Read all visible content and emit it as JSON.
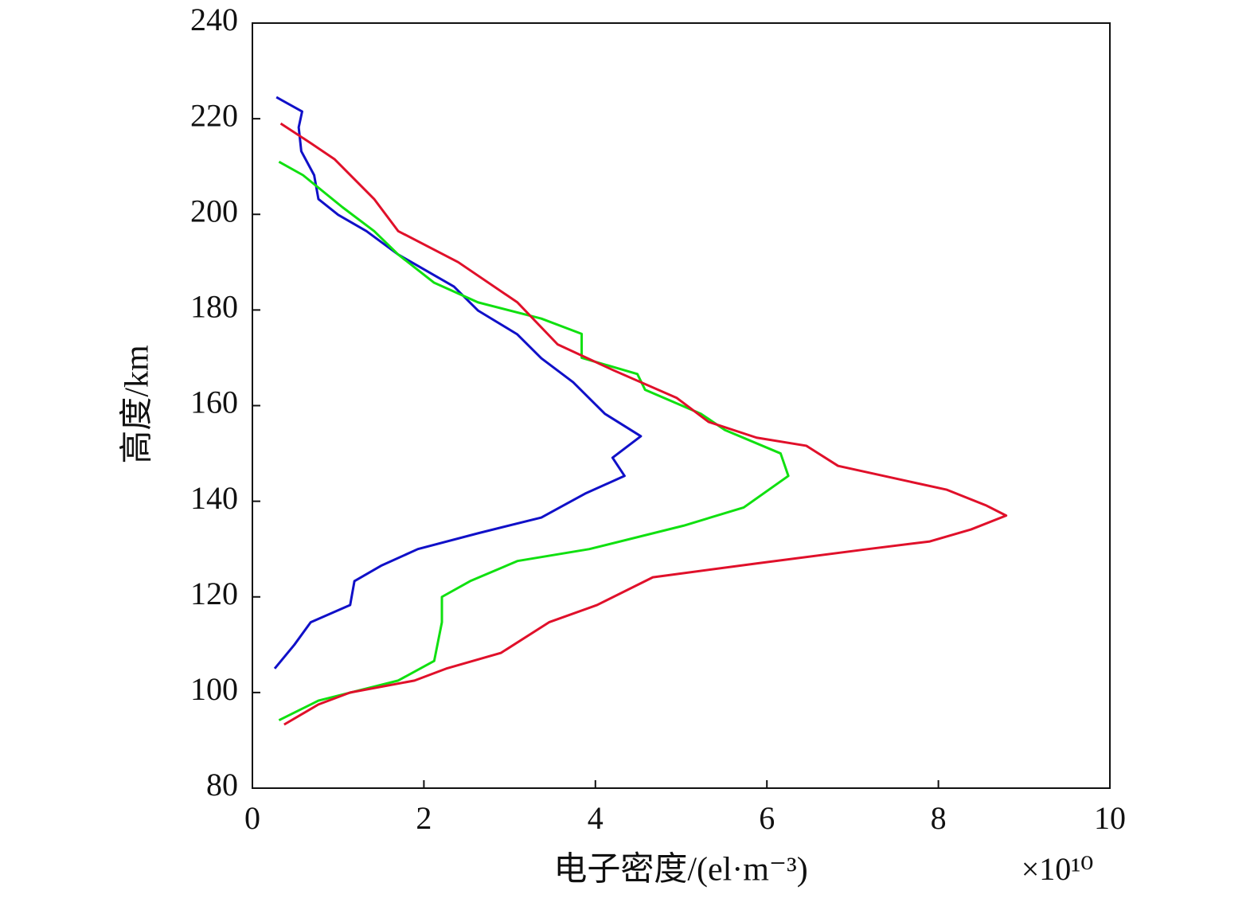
{
  "chart_data": {
    "type": "line",
    "x_label": "电子密度/(el·m⁻³)",
    "y_label": "高度/km",
    "x_multiplier": "×10¹⁰",
    "xlim": [
      0,
      10
    ],
    "xticks": [
      0,
      2,
      4,
      6,
      8,
      10
    ],
    "ylim": [
      80,
      240
    ],
    "yticks": [
      80,
      100,
      120,
      140,
      160,
      180,
      200,
      220,
      240
    ],
    "series": [
      {
        "color": "#1010c8",
        "x": [
          0.28,
          0.58,
          0.54,
          0.57,
          0.72,
          0.77,
          1.0,
          1.33,
          1.7,
          2.35,
          2.63,
          3.09,
          3.37,
          3.74,
          4.11,
          4.53,
          4.2,
          4.34,
          3.88,
          3.37,
          2.63,
          1.93,
          1.51,
          1.19,
          1.14,
          0.68,
          0.49,
          0.26
        ],
        "y": [
          224.5,
          221.5,
          218.2,
          213.2,
          208.2,
          203.2,
          199.9,
          196.5,
          191.6,
          184.9,
          179.9,
          174.9,
          169.9,
          164.9,
          158.3,
          153.6,
          149.1,
          145.3,
          141.6,
          136.6,
          133.3,
          130,
          126.6,
          123.3,
          118.3,
          114.7,
          110,
          105
        ]
      },
      {
        "color": "#10e010",
        "x": [
          0.31,
          0.59,
          1.05,
          1.42,
          1.7,
          2.12,
          2.63,
          3.37,
          3.84,
          3.84,
          4.49,
          4.58,
          5.23,
          5.51,
          6.16,
          6.25,
          5.73,
          5.03,
          3.93,
          3.09,
          2.54,
          2.21,
          2.21,
          2.12,
          1.7,
          0.77,
          0.31
        ],
        "y": [
          211,
          208.2,
          201.5,
          196.5,
          191.6,
          185.7,
          181.6,
          178.2,
          175,
          170,
          166.6,
          163.3,
          158.3,
          154.9,
          150,
          145.3,
          138.7,
          134.9,
          130,
          127.5,
          123.3,
          120,
          114.7,
          106.6,
          102.5,
          98.3,
          94.2
        ]
      },
      {
        "color": "#e0102a",
        "x": [
          0.33,
          0.68,
          0.96,
          1.42,
          1.7,
          2.4,
          3.09,
          3.56,
          4.21,
          4.95,
          5.32,
          5.88,
          6.46,
          6.83,
          8.1,
          8.56,
          8.79,
          8.38,
          7.9,
          7.18,
          5.88,
          4.67,
          4.02,
          3.46,
          2.9,
          2.26,
          1.89,
          1.14,
          0.77,
          0.37
        ],
        "y": [
          219,
          214.9,
          211.5,
          203.2,
          196.5,
          190,
          181.6,
          172.8,
          167.4,
          161.6,
          156.6,
          153.3,
          151.6,
          147.4,
          142.4,
          139.1,
          137,
          134.1,
          131.6,
          130,
          127,
          124.1,
          118.3,
          114.7,
          108.3,
          105,
          102.5,
          100,
          97.5,
          93.3
        ]
      }
    ]
  }
}
